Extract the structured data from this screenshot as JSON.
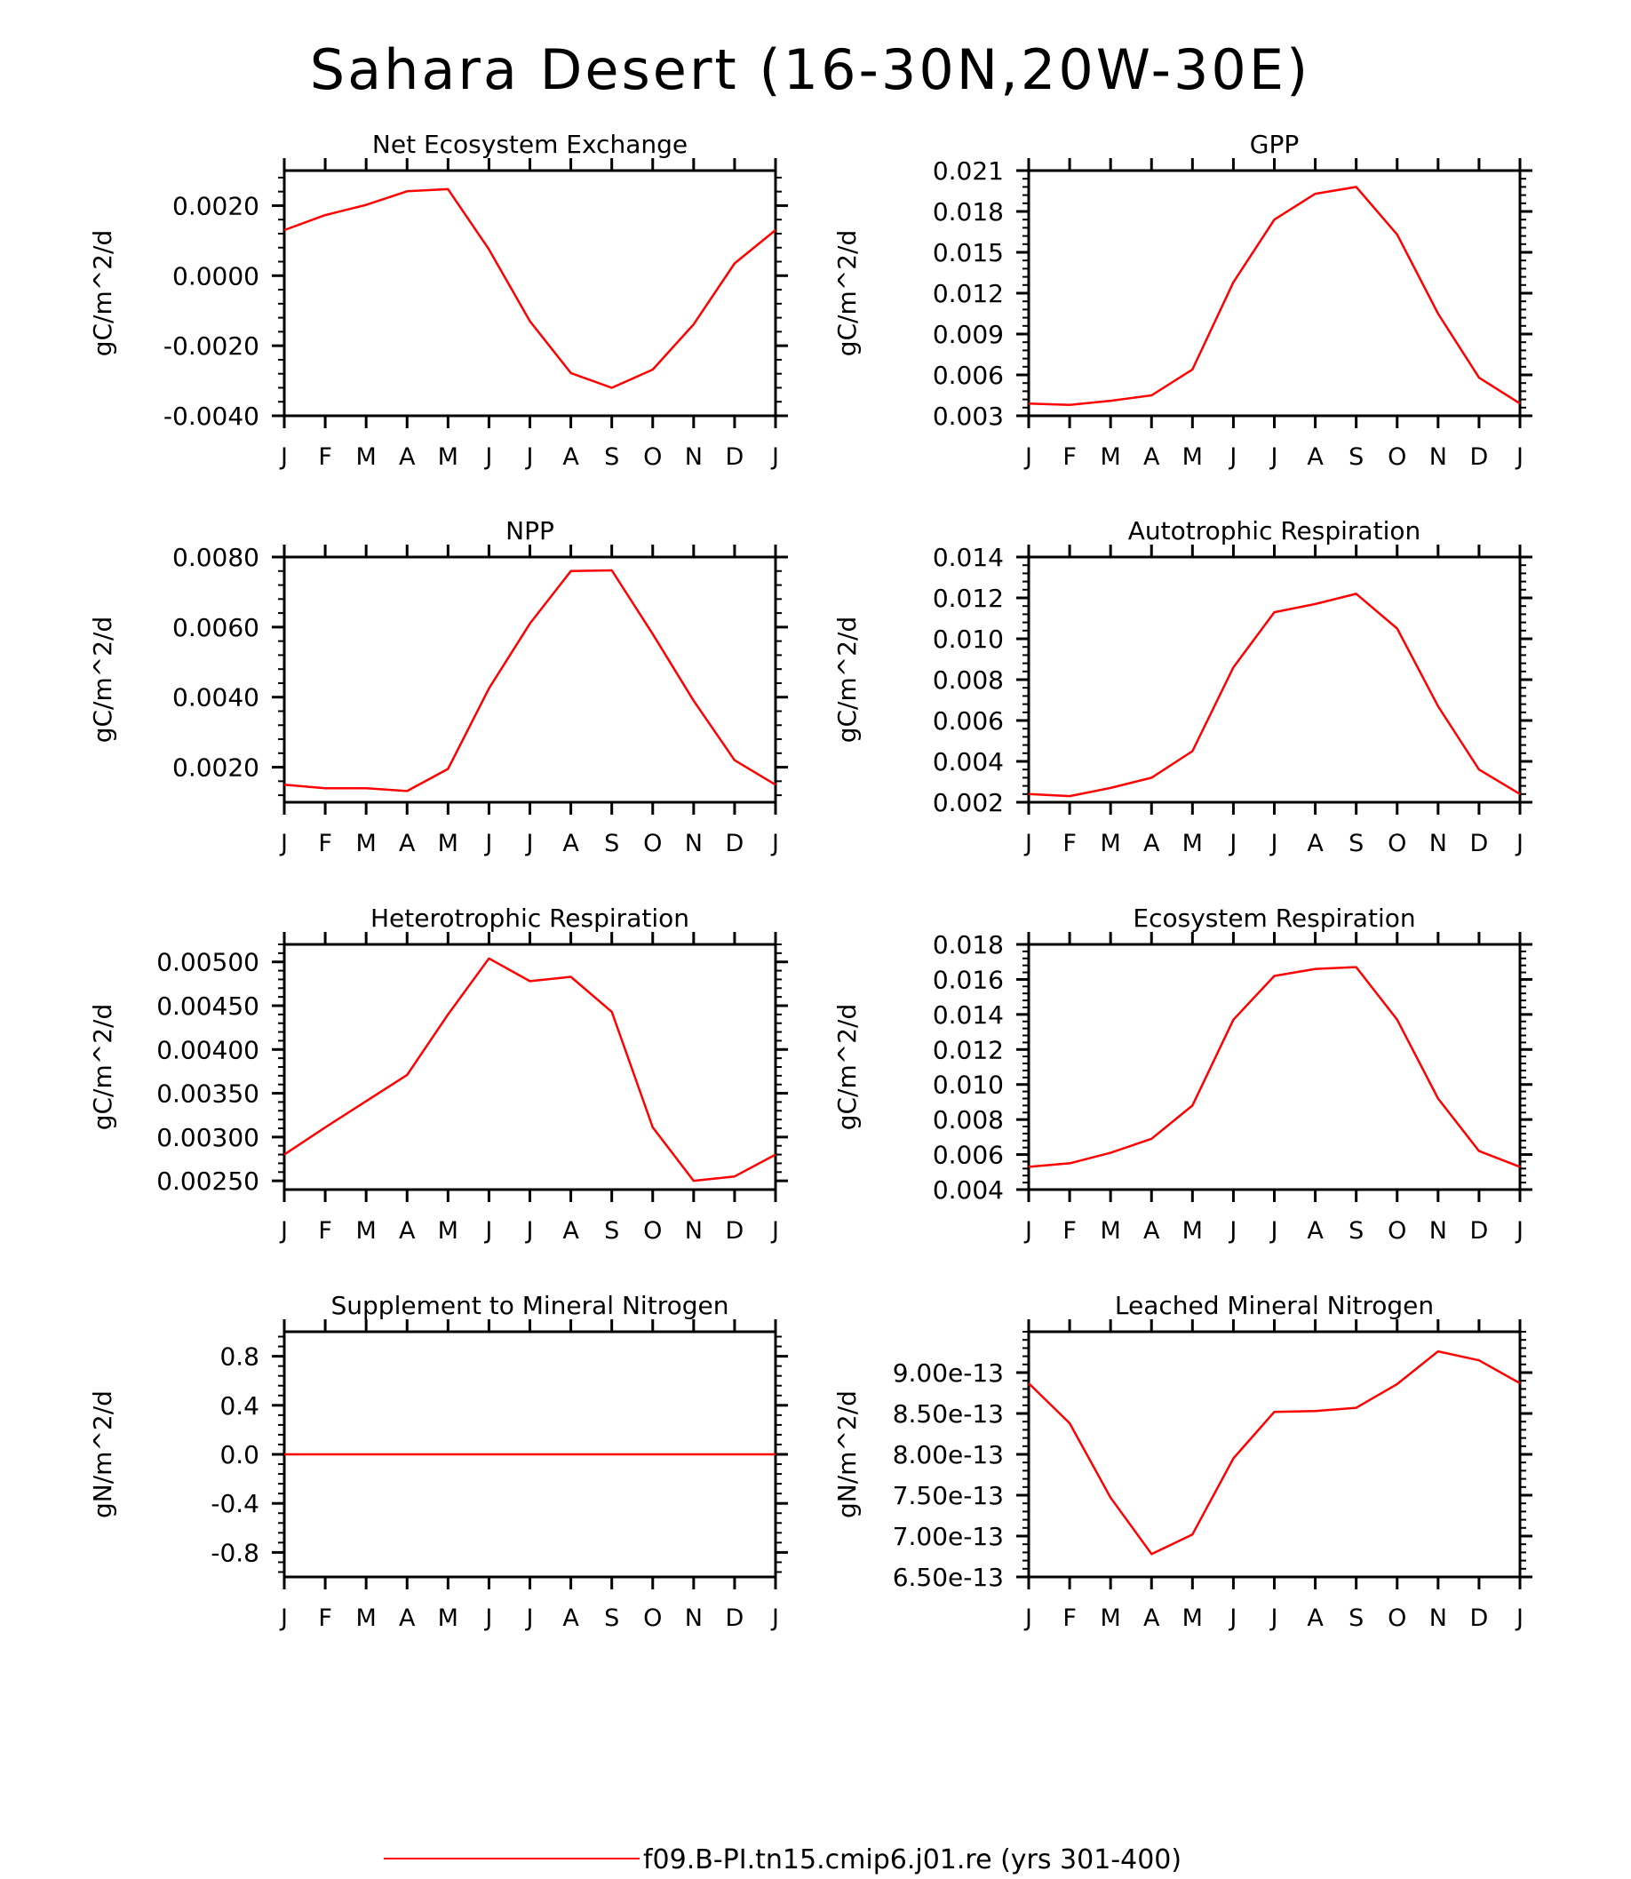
{
  "figure": {
    "title": "Sahara Desert (16-30N,20W-30E)",
    "legend": {
      "label": "f09.B-PI.tn15.cmip6.j01.re (yrs 301-400)",
      "color": "#ff0000",
      "position": "bottom-center"
    }
  },
  "line_color": "#ff0000",
  "chart_data": [
    {
      "type": "line",
      "title": "Net Ecosystem Exchange",
      "ylabel": "gC/m^2/d",
      "categories": [
        "J",
        "F",
        "M",
        "A",
        "M",
        "J",
        "J",
        "A",
        "S",
        "O",
        "N",
        "D",
        "J"
      ],
      "ylim": [
        -0.004,
        0.003
      ],
      "yticks": [
        -0.004,
        -0.002,
        0.0,
        0.002
      ],
      "ytick_labels": [
        "-0.0040",
        "-0.0020",
        "0.0000",
        "0.0020"
      ],
      "values": [
        0.0013,
        0.00173,
        0.00202,
        0.00241,
        0.00247,
        0.00075,
        -0.0013,
        -0.00278,
        -0.0032,
        -0.00268,
        -0.00139,
        0.00035,
        0.0013
      ]
    },
    {
      "type": "line",
      "title": "GPP",
      "ylabel": "gC/m^2/d",
      "categories": [
        "J",
        "F",
        "M",
        "A",
        "M",
        "J",
        "J",
        "A",
        "S",
        "O",
        "N",
        "D",
        "J"
      ],
      "ylim": [
        0.003,
        0.021
      ],
      "yticks": [
        0.003,
        0.006,
        0.009,
        0.012,
        0.015,
        0.018,
        0.021
      ],
      "ytick_labels": [
        "0.003",
        "0.006",
        "0.009",
        "0.012",
        "0.015",
        "0.018",
        "0.021"
      ],
      "values": [
        0.0039,
        0.0038,
        0.0041,
        0.0045,
        0.0064,
        0.0128,
        0.0174,
        0.0193,
        0.0198,
        0.0163,
        0.0105,
        0.0058,
        0.0039
      ]
    },
    {
      "type": "line",
      "title": "NPP",
      "ylabel": "gC/m^2/d",
      "categories": [
        "J",
        "F",
        "M",
        "A",
        "M",
        "J",
        "J",
        "A",
        "S",
        "O",
        "N",
        "D",
        "J"
      ],
      "ylim": [
        0.001,
        0.008
      ],
      "yticks": [
        0.002,
        0.004,
        0.006,
        0.008
      ],
      "ytick_labels": [
        "0.0020",
        "0.0040",
        "0.0060",
        "0.0080"
      ],
      "values": [
        0.0015,
        0.0014,
        0.0014,
        0.00132,
        0.00195,
        0.00425,
        0.0061,
        0.0076,
        0.00762,
        0.0058,
        0.0039,
        0.0022,
        0.0015
      ]
    },
    {
      "type": "line",
      "title": "Autotrophic Respiration",
      "ylabel": "gC/m^2/d",
      "categories": [
        "J",
        "F",
        "M",
        "A",
        "M",
        "J",
        "J",
        "A",
        "S",
        "O",
        "N",
        "D",
        "J"
      ],
      "ylim": [
        0.002,
        0.014
      ],
      "yticks": [
        0.002,
        0.004,
        0.006,
        0.008,
        0.01,
        0.012,
        0.014
      ],
      "ytick_labels": [
        "0.002",
        "0.004",
        "0.006",
        "0.008",
        "0.010",
        "0.012",
        "0.014"
      ],
      "values": [
        0.0024,
        0.0023,
        0.0027,
        0.0032,
        0.0045,
        0.0086,
        0.0113,
        0.0117,
        0.0122,
        0.0105,
        0.0067,
        0.0036,
        0.0024
      ]
    },
    {
      "type": "line",
      "title": "Heterotrophic Respiration",
      "ylabel": "gC/m^2/d",
      "categories": [
        "J",
        "F",
        "M",
        "A",
        "M",
        "J",
        "J",
        "A",
        "S",
        "O",
        "N",
        "D",
        "J"
      ],
      "ylim": [
        0.0024,
        0.0052
      ],
      "yticks": [
        0.0025,
        0.003,
        0.0035,
        0.004,
        0.0045,
        0.005
      ],
      "ytick_labels": [
        "0.00250",
        "0.00300",
        "0.00350",
        "0.00400",
        "0.00450",
        "0.00500"
      ],
      "values": [
        0.0028,
        0.00311,
        0.00341,
        0.00371,
        0.0044,
        0.00504,
        0.00478,
        0.00483,
        0.00443,
        0.00311,
        0.0025,
        0.00255,
        0.0028
      ]
    },
    {
      "type": "line",
      "title": "Ecosystem Respiration",
      "ylabel": "gC/m^2/d",
      "categories": [
        "J",
        "F",
        "M",
        "A",
        "M",
        "J",
        "J",
        "A",
        "S",
        "O",
        "N",
        "D",
        "J"
      ],
      "ylim": [
        0.004,
        0.018
      ],
      "yticks": [
        0.004,
        0.006,
        0.008,
        0.01,
        0.012,
        0.014,
        0.016,
        0.018
      ],
      "ytick_labels": [
        "0.004",
        "0.006",
        "0.008",
        "0.010",
        "0.012",
        "0.014",
        "0.016",
        "0.018"
      ],
      "values": [
        0.0053,
        0.0055,
        0.0061,
        0.0069,
        0.0088,
        0.0137,
        0.0162,
        0.0166,
        0.0167,
        0.0137,
        0.0092,
        0.0062,
        0.0053
      ]
    },
    {
      "type": "line",
      "title": "Supplement to Mineral Nitrogen",
      "ylabel": "gN/m^2/d",
      "categories": [
        "J",
        "F",
        "M",
        "A",
        "M",
        "J",
        "J",
        "A",
        "S",
        "O",
        "N",
        "D",
        "J"
      ],
      "ylim": [
        -1.0,
        1.0
      ],
      "yticks": [
        -0.8,
        -0.4,
        0.0,
        0.4,
        0.8
      ],
      "ytick_labels": [
        "-0.8",
        "-0.4",
        "0.0",
        "0.4",
        "0.8"
      ],
      "values": [
        0,
        0,
        0,
        0,
        0,
        0,
        0,
        0,
        0,
        0,
        0,
        0,
        0
      ]
    },
    {
      "type": "line",
      "title": "Leached Mineral Nitrogen",
      "ylabel": "gN/m^2/d",
      "categories": [
        "J",
        "F",
        "M",
        "A",
        "M",
        "J",
        "J",
        "A",
        "S",
        "O",
        "N",
        "D",
        "J"
      ],
      "ylim": [
        6.5e-13,
        9.5e-13
      ],
      "yticks": [
        6.5e-13,
        7e-13,
        7.5e-13,
        8e-13,
        8.5e-13,
        9e-13
      ],
      "ytick_labels": [
        "6.50e-13",
        "7.00e-13",
        "7.50e-13",
        "8.00e-13",
        "8.50e-13",
        "9.00e-13"
      ],
      "values": [
        8.87e-13,
        8.38e-13,
        7.47e-13,
        6.78e-13,
        7.02e-13,
        7.95e-13,
        8.52e-13,
        8.53e-13,
        8.57e-13,
        8.86e-13,
        9.26e-13,
        9.15e-13,
        8.87e-13
      ]
    }
  ]
}
